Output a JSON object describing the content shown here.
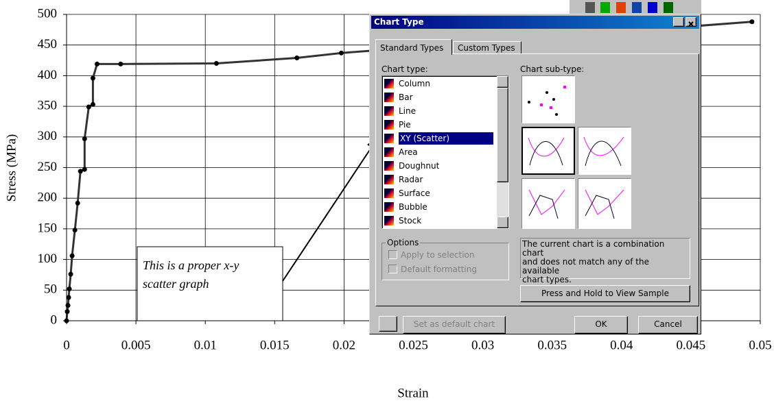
{
  "chart_data": {
    "type": "scatter",
    "line": true,
    "color": "#333333",
    "xlabel": "Strain",
    "ylabel": "Stress (MPa)",
    "x": [
      0,
      5e-05,
      0.0001,
      0.00015,
      0.0002,
      0.0003,
      0.0004,
      0.0006,
      0.0008,
      0.001,
      0.0013,
      0.0013,
      0.0016,
      0.0019,
      0.0019,
      0.0022,
      0.0039,
      0.0108,
      0.0166,
      0.0198,
      0.0494
    ],
    "values": [
      0,
      15,
      25,
      38,
      52,
      76,
      106,
      148,
      192,
      244,
      247,
      297,
      349,
      353,
      396,
      419,
      419,
      420,
      429,
      437,
      488
    ],
    "xlim": [
      0,
      0.05
    ],
    "xticks": [
      0,
      0.005,
      0.01,
      0.015,
      0.02,
      0.025,
      0.03,
      0.035,
      0.04,
      0.045,
      0.05
    ],
    "ylim": [
      0,
      500
    ],
    "yticks": [
      0,
      50,
      100,
      150,
      200,
      250,
      300,
      350,
      400,
      450,
      500
    ],
    "grid": true
  },
  "annotation": {
    "lines": [
      "This is a proper x-y",
      "scatter graph"
    ]
  },
  "dialog": {
    "title": "Chart Type",
    "tabs": [
      "Standard Types",
      "Custom Types"
    ],
    "chart_type_label": "Chart type:",
    "subtype_label": "Chart sub-type:",
    "chart_types": [
      "Column",
      "Bar",
      "Line",
      "Pie",
      "XY (Scatter)",
      "Area",
      "Doughnut",
      "Radar",
      "Surface",
      "Bubble",
      "Stock"
    ],
    "selected": 4,
    "options_label": "Options",
    "options": [
      "Apply to selection",
      "Default formatting"
    ],
    "description": [
      "The current chart is a combination chart",
      "and does not match any of the available",
      "chart types."
    ],
    "sample_button": "Press and Hold to View Sample",
    "default_button": "Set as default chart",
    "ok": "OK",
    "cancel": "Cancel"
  }
}
